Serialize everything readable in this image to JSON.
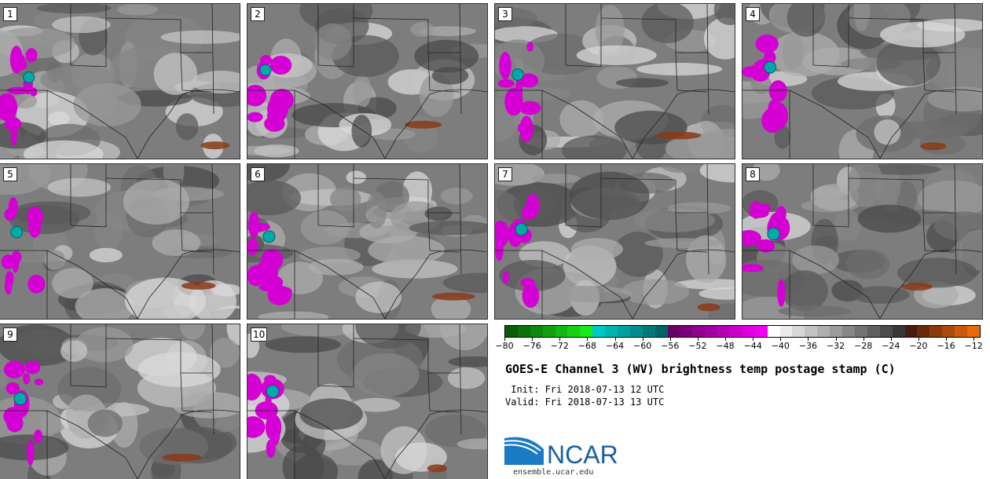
{
  "title": "GOES-E Channel 3 (WV) brightness temp postage stamp (C)",
  "init_text": " Init: Fri 2018-07-13 12 UTC",
  "valid_text": "Valid: Fri 2018-07-13 13 UTC",
  "logo": {
    "wordmark": "NCAR",
    "url_text": "ensemble.ucar.edu"
  },
  "panels": [
    {
      "label": "1"
    },
    {
      "label": "2"
    },
    {
      "label": "3"
    },
    {
      "label": "4"
    },
    {
      "label": "5"
    },
    {
      "label": "6"
    },
    {
      "label": "7"
    },
    {
      "label": "8"
    },
    {
      "label": "9"
    },
    {
      "label": "10"
    }
  ],
  "colorbar": {
    "min": -80,
    "max": -11,
    "step": 2,
    "tick_labels": [
      "-80",
      "-76",
      "-72",
      "-68",
      "-64",
      "-60",
      "-56",
      "-52",
      "-48",
      "-44",
      "-40",
      "-36",
      "-32",
      "-28",
      "-24",
      "-20",
      "-16",
      "-12"
    ],
    "colors": [
      "#0a5a0a",
      "#0c700c",
      "#0e880e",
      "#10a010",
      "#14b814",
      "#18d018",
      "#1ae81a",
      "#00c8c8",
      "#00b4b4",
      "#00a0a0",
      "#008c8c",
      "#007878",
      "#006464",
      "#660066",
      "#7a007a",
      "#8e008e",
      "#a200a2",
      "#b600b6",
      "#ca00ca",
      "#de00de",
      "#f000f0",
      "#ffffff",
      "#ebebeb",
      "#d7d7d7",
      "#c3c3c3",
      "#afafaf",
      "#9b9b9b",
      "#878787",
      "#737373",
      "#5f5f5f",
      "#4b4b4b",
      "#373737",
      "#4a1a0a",
      "#6a2a0a",
      "#8a3a0a",
      "#aa4a0a",
      "#ca5a0a",
      "#e86a0a"
    ]
  }
}
